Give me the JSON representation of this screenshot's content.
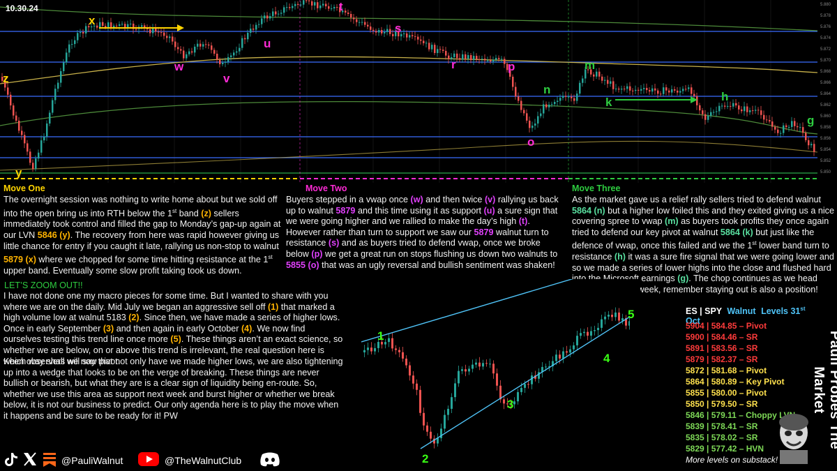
{
  "date": "10.30.24",
  "moves": {
    "one": "Move One",
    "two": "Move Two",
    "three": "Move Three"
  },
  "chart_labels": {
    "x": "x",
    "y": "y",
    "z": "z",
    "w": "w",
    "v": "v",
    "u": "u",
    "t": "t",
    "s": "s",
    "r": "r",
    "p": "p",
    "o": "o",
    "n": "n",
    "m": "m",
    "k": "k",
    "h": "h",
    "g": "g"
  },
  "daily_labels": {
    "one": "1",
    "two": "2",
    "three": "3",
    "four": "4",
    "five": "5"
  },
  "price_axis": [
    "5.880",
    "5.878",
    "5.876",
    "5.874",
    "5.872",
    "5.870",
    "5.868",
    "5.866",
    "5.864",
    "5.862",
    "5.860",
    "5.858",
    "5.856",
    "5.854",
    "5.852",
    "5.850"
  ],
  "paragraph1": [
    {
      "t": "The overnight session was nothing to write home about but we sold off into the open bring us into RTH below the 1"
    },
    {
      "t": "st",
      "sup": true
    },
    {
      "t": " band "
    },
    {
      "t": "(z)",
      "c": "o"
    },
    {
      "t": " sellers immediately took control and filled the gap to Monday’s gap-up again at our LVN "
    },
    {
      "t": "5846 (y)",
      "c": "o"
    },
    {
      "t": ". The recovery from here was rapid however giving us little chance for entry if you caught it late, rallying us non-stop to walnut "
    },
    {
      "t": "5879 (x)",
      "c": "o"
    },
    {
      "t": " where we chopped for some time hitting resistance at the 1"
    },
    {
      "t": "st",
      "sup": true
    },
    {
      "t": " upper band. Eventually some slow profit taking took us down."
    }
  ],
  "paragraph2": [
    {
      "t": "Buyers stepped in a vwap once "
    },
    {
      "t": "(w)",
      "c": "p"
    },
    {
      "t": " and then twice "
    },
    {
      "t": "(v)",
      "c": "p"
    },
    {
      "t": " rallying us back up to walnut "
    },
    {
      "t": "5879",
      "c": "p"
    },
    {
      "t": " and this time using it as support "
    },
    {
      "t": "(u)",
      "c": "p"
    },
    {
      "t": " a sure sign that we were going higher and we rallied to make the day’s high "
    },
    {
      "t": "(t)",
      "c": "p"
    },
    {
      "t": ". However rather than turn to support we saw our "
    },
    {
      "t": "5879",
      "c": "p"
    },
    {
      "t": " walnut turn to resistance "
    },
    {
      "t": "(s)",
      "c": "p"
    },
    {
      "t": " and as buyers tried to defend vwap, once we broke below "
    },
    {
      "t": "(p)",
      "c": "p"
    },
    {
      "t": " we get a great run on stops flushing us down two walnuts to "
    },
    {
      "t": "5855 (o)",
      "c": "p"
    },
    {
      "t": " that was an ugly reversal and bullish sentiment was shaken!"
    }
  ],
  "paragraph3": [
    {
      "t": "As the market gave us a relief rally sellers tried to defend walnut "
    },
    {
      "t": "5864 (n)",
      "c": "g"
    },
    {
      "t": " but a higher low foiled this and they exited giving us a nice covering spree to vwap "
    },
    {
      "t": "(m)",
      "c": "g"
    },
    {
      "t": " as buyers took profits they once again tried to defend our key pivot at walnut "
    },
    {
      "t": "5864 (k)",
      "c": "g"
    },
    {
      "t": " but just like the defence of vwap, once this failed and we the 1"
    },
    {
      "t": "st",
      "sup": true
    },
    {
      "t": " lower band turn to resistance "
    },
    {
      "t": "(h)",
      "c": "g"
    },
    {
      "t": " it was a sure fire signal that we were going lower and so we made a series of lower highs into the close and flushed hard into the Microsoft earnings "
    },
    {
      "t": "(g)",
      "c": "g"
    },
    {
      "t": ". The chop continues as we head towards election week, remember staying out is also a position!"
    }
  ],
  "zoom_title": "LET’S ZOOM OUT!!",
  "paragraph4": [
    {
      "t": "I have not done one my macro pieces for some time. But I wanted to share with you where we are on the daily. Mid July we began an aggressive sell off "
    },
    {
      "t": "(1)",
      "c": "o"
    },
    {
      "t": " that marked a high volume low at walnut 5183 "
    },
    {
      "t": "(2)",
      "c": "o"
    },
    {
      "t": ". Since then, we have made a series of higher lows. Once in early September "
    },
    {
      "t": "(3)",
      "c": "o"
    },
    {
      "t": " and then again in early October "
    },
    {
      "t": "(4)",
      "c": "o"
    },
    {
      "t": ". We now find ourselves testing this trend line once more "
    },
    {
      "t": "(5)",
      "c": "o"
    },
    {
      "t": ". These things aren’t an exact science, so whether we are below, on or above this trend is irrelevant, the real question here is which way shall we now pivot."
    }
  ],
  "paragraph5": [
    {
      "t": "Keen observers will say that not only have we made higher lows, we are also tightening up into a wedge that looks to be on the verge of breaking. These things are never bullish or bearish, but what they are is a clear sign of liquidity being en-route. So, whether we use this area as support next week and burst higher or whether we break below, it is not our business to predict. Our only agenda here is to play the move when it happens and be sure to be ready for it! PW"
    }
  ],
  "levels": {
    "head_a": "ES | SPY",
    "head_b": "Walnut",
    "head_c": "Levels 31",
    "head_sup": "st",
    "head_d": " Oct",
    "rows": [
      {
        "text": "5904 | 584.85 – Pivot",
        "color": "#ff3b3b"
      },
      {
        "text": "5900 | 584.46 – SR",
        "color": "#ff3b3b"
      },
      {
        "text": "5891 | 583.56 – SR",
        "color": "#ff3b3b"
      },
      {
        "text": "5879 | 582.37 – SR",
        "color": "#ff3b3b"
      },
      {
        "text": "5872 | 581.68 – Pivot",
        "color": "#ffe14d"
      },
      {
        "text": "5864 | 580.89 – Key Pivot",
        "color": "#ffe14d"
      },
      {
        "text": "5855 | 580.00 – Pivot",
        "color": "#ffe14d"
      },
      {
        "text": "5850 | 579.50 – SR",
        "color": "#ffe14d"
      },
      {
        "text": "5846 | 579.11 – Choppy LVN",
        "color": "#7ed957"
      },
      {
        "text": "5839 | 578.41 – SR",
        "color": "#7ed957"
      },
      {
        "text": "5835 | 578.02 – SR",
        "color": "#7ed957"
      },
      {
        "text": "5829 | 577.42 – HVN",
        "color": "#7ed957"
      }
    ],
    "more": "More levels on substack!"
  },
  "vertical_title": "Pauli Probes The Market",
  "footer": {
    "handle_x": "@PauliWalnut",
    "handle_yt": "@TheWalnutClub"
  },
  "colors": {
    "accent_yellow": "#ffd400",
    "accent_magenta": "#ff2bd6",
    "accent_green": "#2ecc40",
    "candle_up": "#26a69a",
    "candle_down": "#ef5350"
  }
}
